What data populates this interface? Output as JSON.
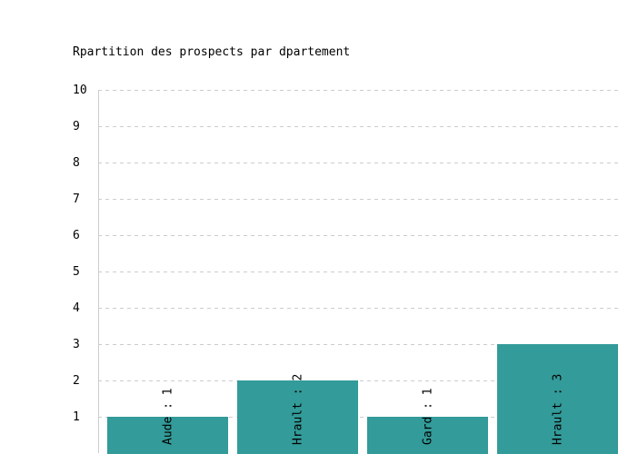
{
  "chart_data": {
    "type": "bar",
    "title": "Rpartition des prospects par dpartement",
    "xlabel": "",
    "ylabel": "",
    "categories": [
      "Aude",
      "Hrault",
      "Gard",
      "Hrault"
    ],
    "values": [
      1,
      2,
      1,
      3
    ],
    "bar_labels": [
      "Aude : 1",
      "Hrault : 2",
      "Gard : 1",
      "Hrault : 3"
    ],
    "ylim": [
      0,
      10
    ],
    "yticks": [
      "1",
      "2",
      "3",
      "4",
      "5",
      "6",
      "7",
      "8",
      "9",
      "10"
    ],
    "grid": true,
    "legend": "none",
    "colors": {
      "bar": "#339B99",
      "grid": "#CCCCCC",
      "axis": "#CCCCCC"
    }
  }
}
